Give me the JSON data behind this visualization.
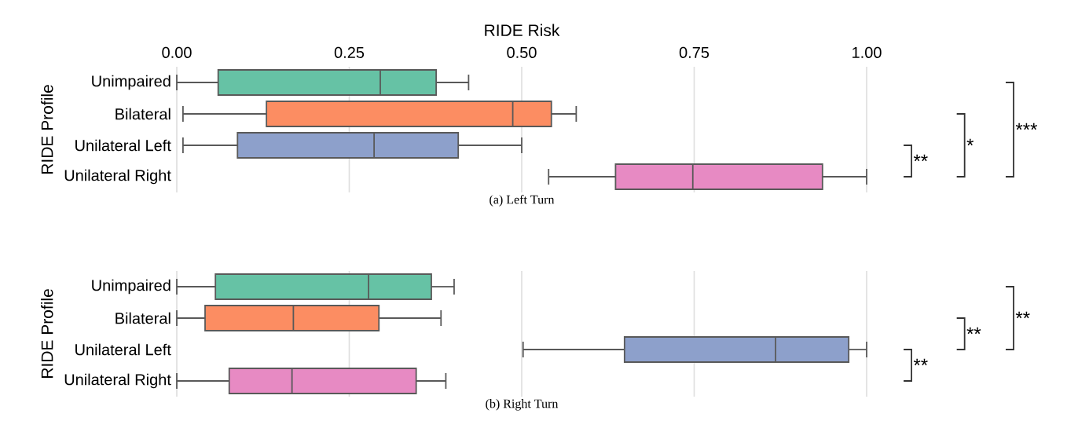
{
  "chart_data": [
    {
      "type": "box",
      "orientation": "horizontal",
      "title": "(a) Left Turn",
      "xlabel": "RIDE Risk",
      "ylabel": "RIDE Profile",
      "categories": [
        "Unimpaired",
        "Bilateral",
        "Unilateral Left",
        "Unilateral Right"
      ],
      "colors": [
        "#66c2a5",
        "#fc8d62",
        "#8da0cb",
        "#e78ac3"
      ],
      "xlim": [
        0,
        1
      ],
      "xticks": [
        {
          "value": 0,
          "label": "0.00"
        },
        {
          "value": 0.25,
          "label": "0.25"
        },
        {
          "value": 0.5,
          "label": "0.50"
        },
        {
          "value": 0.75,
          "label": "0.75"
        },
        {
          "value": 1,
          "label": "1.00"
        }
      ],
      "grid": "x",
      "boxes": [
        {
          "low": 0.0,
          "q1": 0.06,
          "median": 0.295,
          "q3": 0.376,
          "high": 0.423
        },
        {
          "low": 0.009,
          "q1": 0.13,
          "median": 0.487,
          "q3": 0.543,
          "high": 0.579
        },
        {
          "low": 0.009,
          "q1": 0.088,
          "median": 0.286,
          "q3": 0.408,
          "high": 0.5
        },
        {
          "low": 0.539,
          "q1": 0.636,
          "median": 0.748,
          "q3": 0.936,
          "high": 1.0
        }
      ],
      "annotations": [
        "**",
        "*",
        "***"
      ]
    },
    {
      "type": "box",
      "orientation": "horizontal",
      "title": "(b) Right Turn",
      "ylabel": "RIDE Profile",
      "categories": [
        "Unimpaired",
        "Bilateral",
        "Unilateral Left",
        "Unilateral Right"
      ],
      "colors": [
        "#66c2a5",
        "#fc8d62",
        "#8da0cb",
        "#e78ac3"
      ],
      "xlim": [
        0,
        1
      ],
      "grid": "x",
      "tick_labels": "y",
      "boxes": [
        {
          "low": 0.0,
          "q1": 0.056,
          "median": 0.278,
          "q3": 0.369,
          "high": 0.402
        },
        {
          "low": 0.0,
          "q1": 0.041,
          "median": 0.169,
          "q3": 0.293,
          "high": 0.383
        },
        {
          "low": 0.502,
          "q1": 0.649,
          "median": 0.868,
          "q3": 0.974,
          "high": 1.0
        },
        {
          "low": 0.0,
          "q1": 0.076,
          "median": 0.167,
          "q3": 0.347,
          "high": 0.39
        }
      ],
      "annotations": [
        "**",
        "**",
        "**"
      ]
    }
  ]
}
